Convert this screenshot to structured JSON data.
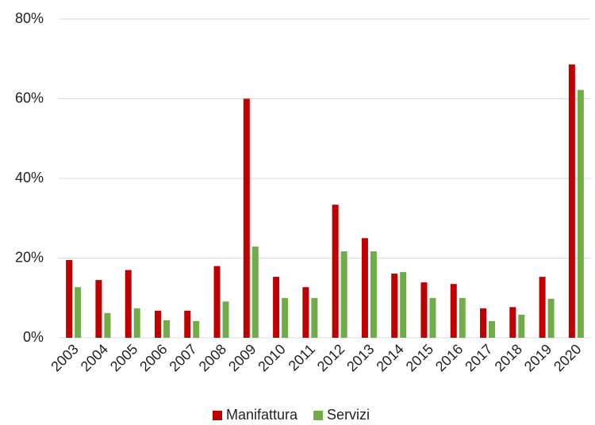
{
  "chart_data": {
    "type": "bar",
    "categories": [
      "2003",
      "2004",
      "2005",
      "2006",
      "2007",
      "2008",
      "2009",
      "2010",
      "2011",
      "2012",
      "2013",
      "2014",
      "2015",
      "2016",
      "2017",
      "2018",
      "2019",
      "2020"
    ],
    "series": [
      {
        "name": "Manifattura",
        "color": "#c00000",
        "values": [
          19.5,
          14.5,
          17,
          6.8,
          6.8,
          18,
          60,
          15.3,
          12.7,
          33.4,
          25,
          16.1,
          13.9,
          13.5,
          7.4,
          7.7,
          15.3,
          68.6
        ]
      },
      {
        "name": "Servizi",
        "color": "#70ad47",
        "values": [
          12.7,
          6.2,
          7.4,
          4.4,
          4.2,
          9.1,
          22.9,
          10,
          10,
          21.7,
          21.7,
          16.5,
          10,
          10,
          4.2,
          5.8,
          9.8,
          62.2
        ]
      }
    ],
    "ylim": [
      0,
      80
    ],
    "yticks": [
      {
        "value": 0,
        "label": "0%"
      },
      {
        "value": 20,
        "label": "20%"
      },
      {
        "value": 40,
        "label": "40%"
      },
      {
        "value": 60,
        "label": "60%"
      },
      {
        "value": 80,
        "label": "80%"
      }
    ],
    "grid": true,
    "legend": "bottom"
  }
}
